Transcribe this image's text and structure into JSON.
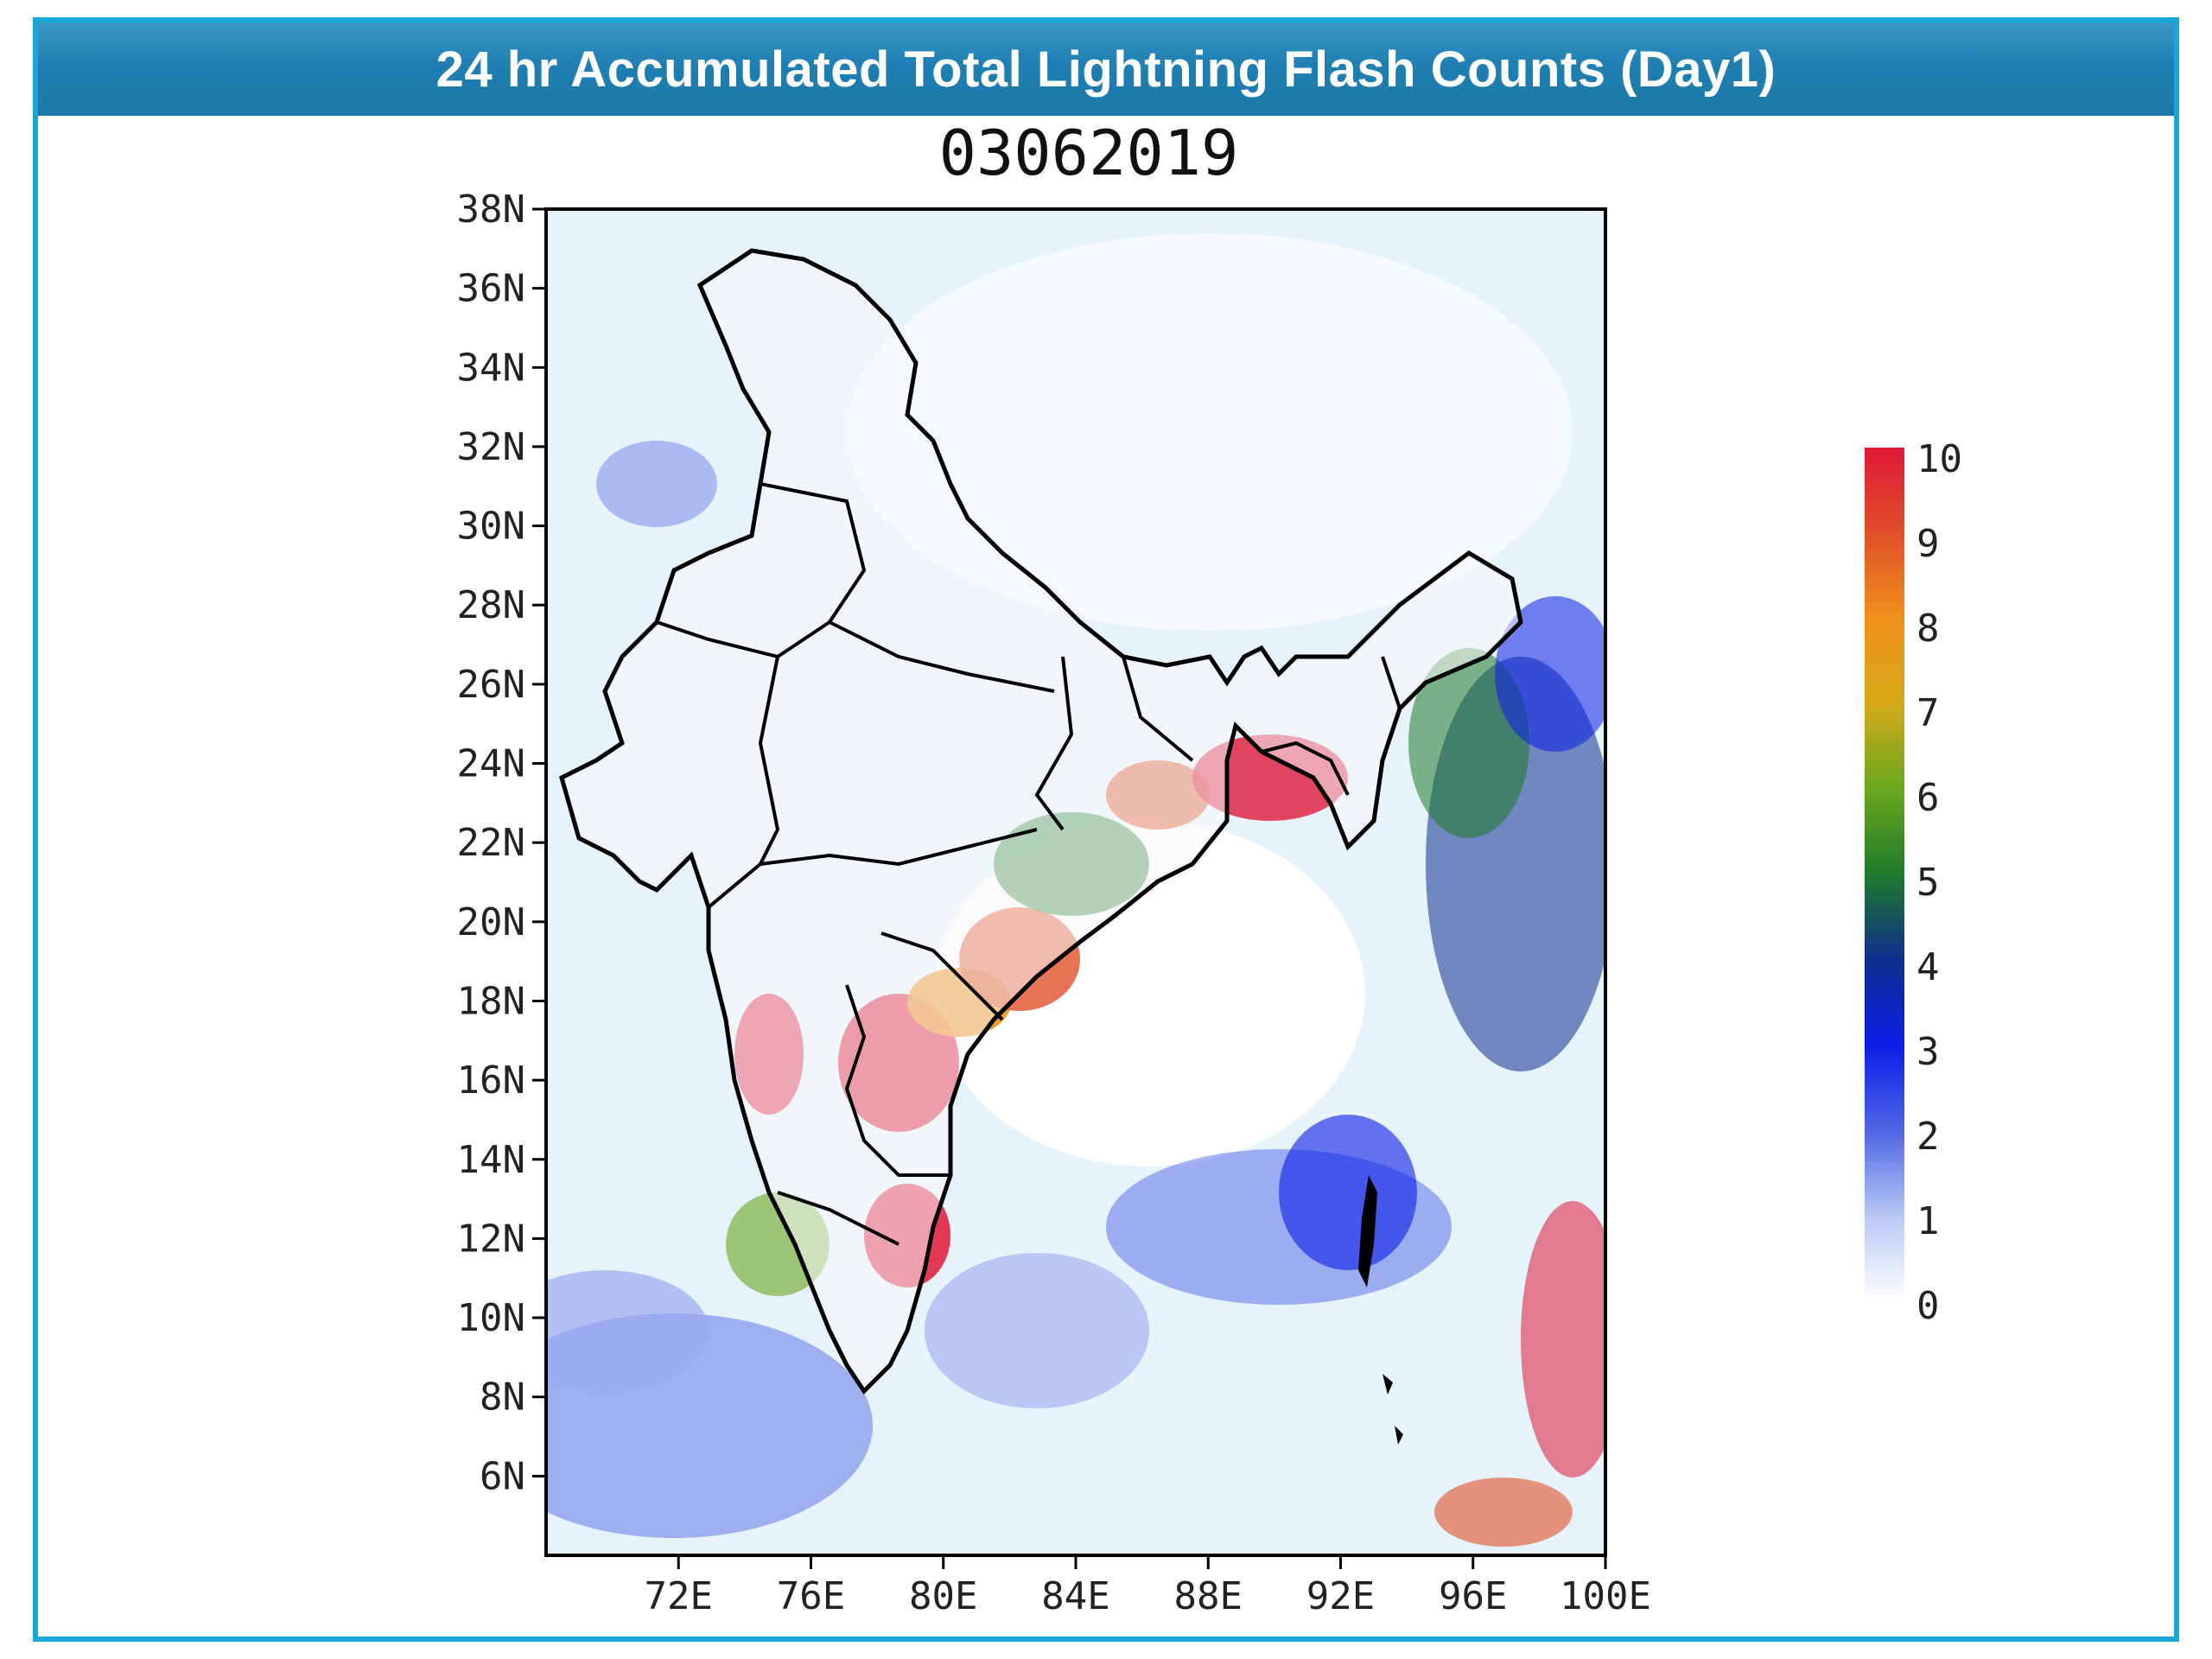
{
  "header": {
    "title": "24 hr Accumulated Total Lightning Flash Counts (Day1)"
  },
  "map": {
    "date": "03062019",
    "lat_labels": [
      "38N",
      "36N",
      "34N",
      "32N",
      "30N",
      "28N",
      "26N",
      "24N",
      "22N",
      "20N",
      "18N",
      "16N",
      "14N",
      "12N",
      "10N",
      "8N",
      "6N"
    ],
    "lat_values": [
      38,
      36,
      34,
      32,
      30,
      28,
      26,
      24,
      22,
      20,
      18,
      16,
      14,
      12,
      10,
      8,
      6
    ],
    "lon_labels": [
      "72E",
      "76E",
      "80E",
      "84E",
      "88E",
      "92E",
      "96E",
      "100E"
    ],
    "lon_values": [
      72,
      76,
      80,
      84,
      88,
      92,
      96,
      100
    ],
    "extent": {
      "lon_min": 68,
      "lon_max": 100,
      "lat_min": 4,
      "lat_max": 38
    }
  },
  "legend": {
    "labels": [
      "10",
      "9",
      "8",
      "7",
      "6",
      "5",
      "4",
      "3",
      "2",
      "1",
      "0"
    ],
    "values": [
      10,
      9,
      8,
      7,
      6,
      5,
      4,
      3,
      2,
      1,
      0
    ],
    "colors": {
      "0": "#ffffff",
      "1": "#b8c8f4",
      "2": "#4f66e6",
      "3": "#0b1ee8",
      "4": "#0e2e8e",
      "5": "#1e7a2a",
      "6": "#6aa81e",
      "7": "#d4a818",
      "8": "#f0901a",
      "9": "#e0502a",
      "10": "#e01838"
    }
  },
  "colors": {
    "frame": "#1aa7d8",
    "title_bar": "#1f7fb2",
    "ocean_tint": "#e6f3fb",
    "boundary": "#000000"
  }
}
